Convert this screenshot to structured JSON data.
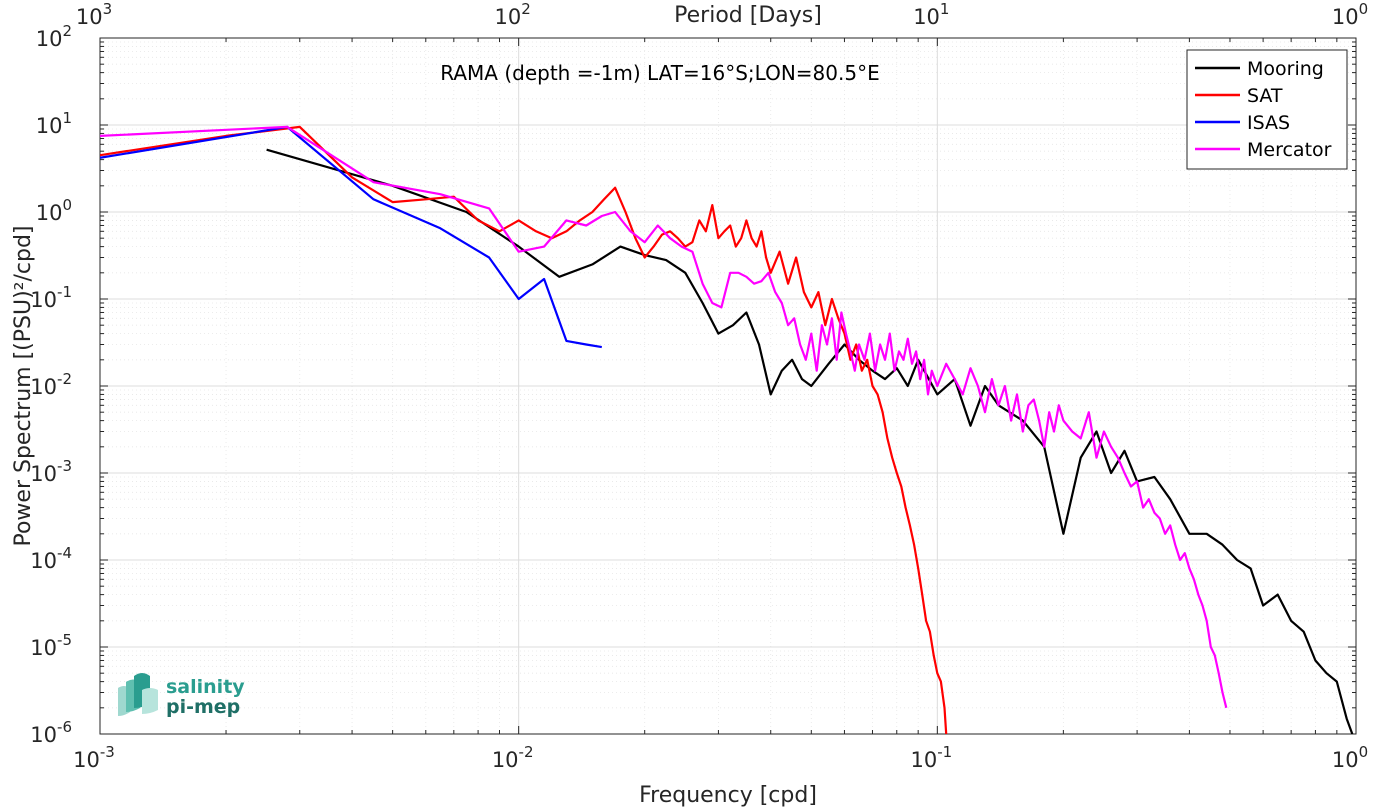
{
  "logo": {
    "line1": "salinity",
    "line2": "pi-mep",
    "color": "#2a9d8f"
  },
  "chart_data": {
    "type": "line",
    "title": "RAMA (depth =-1m) LAT=16°S;LON=80.5°E",
    "xlabel": "Frequency [cpd]",
    "ylabel": "Power Spectrum [(PSU)²/cpd]",
    "top_xlabel": "Period [Days]",
    "x_scale": "log",
    "y_scale": "log",
    "xlim": [
      0.001,
      1
    ],
    "ylim": [
      1e-06,
      100
    ],
    "grid": true,
    "minor_grid": true,
    "legend_position": "top-right",
    "x_ticks": [
      {
        "v": 0.001,
        "base": "10",
        "exp": "-3"
      },
      {
        "v": 0.01,
        "base": "10",
        "exp": "-2"
      },
      {
        "v": 0.1,
        "base": "10",
        "exp": "-1"
      },
      {
        "v": 1,
        "base": "10",
        "exp": "0"
      }
    ],
    "top_ticks": [
      {
        "v": 0.001,
        "base": "10",
        "exp": "3"
      },
      {
        "v": 0.01,
        "base": "10",
        "exp": "2"
      },
      {
        "v": 0.1,
        "base": "10",
        "exp": "1"
      },
      {
        "v": 1,
        "base": "10",
        "exp": "0"
      }
    ],
    "y_ticks": [
      {
        "v": 100,
        "base": "10",
        "exp": "2"
      },
      {
        "v": 10,
        "base": "10",
        "exp": "1"
      },
      {
        "v": 1,
        "base": "10",
        "exp": "0"
      },
      {
        "v": 0.1,
        "base": "10",
        "exp": "-1"
      },
      {
        "v": 0.01,
        "base": "10",
        "exp": "-2"
      },
      {
        "v": 0.001,
        "base": "10",
        "exp": "-3"
      },
      {
        "v": 0.0001,
        "base": "10",
        "exp": "-4"
      },
      {
        "v": 1e-05,
        "base": "10",
        "exp": "-5"
      },
      {
        "v": 1e-06,
        "base": "10",
        "exp": "-6"
      }
    ],
    "series": [
      {
        "name": "Mooring",
        "color": "#000000",
        "x": [
          0.0025,
          0.005,
          0.0075,
          0.01,
          0.0125,
          0.015,
          0.0175,
          0.02,
          0.0225,
          0.025,
          0.0275,
          0.03,
          0.0325,
          0.035,
          0.0375,
          0.04,
          0.0425,
          0.045,
          0.0475,
          0.05,
          0.055,
          0.06,
          0.065,
          0.07,
          0.075,
          0.08,
          0.085,
          0.09,
          0.1,
          0.11,
          0.12,
          0.13,
          0.14,
          0.16,
          0.18,
          0.2,
          0.22,
          0.24,
          0.26,
          0.28,
          0.3,
          0.33,
          0.36,
          0.4,
          0.44,
          0.48,
          0.52,
          0.56,
          0.6,
          0.65,
          0.7,
          0.75,
          0.8,
          0.85,
          0.9,
          0.95,
          0.98
        ],
        "y": [
          5.2,
          2.0,
          1.0,
          0.4,
          0.18,
          0.25,
          0.4,
          0.32,
          0.28,
          0.2,
          0.09,
          0.04,
          0.05,
          0.07,
          0.03,
          0.008,
          0.015,
          0.02,
          0.012,
          0.01,
          0.018,
          0.03,
          0.02,
          0.015,
          0.012,
          0.016,
          0.01,
          0.02,
          0.008,
          0.012,
          0.0035,
          0.01,
          0.006,
          0.004,
          0.002,
          0.0002,
          0.0015,
          0.003,
          0.001,
          0.0018,
          0.0008,
          0.0009,
          0.0005,
          0.0002,
          0.0002,
          0.00015,
          0.0001,
          8e-05,
          3e-05,
          4e-05,
          2e-05,
          1.5e-05,
          7e-06,
          5e-06,
          4e-06,
          1.5e-06,
          1e-06
        ]
      },
      {
        "name": "SAT",
        "color": "#ff0000",
        "x": [
          0.001,
          0.002,
          0.003,
          0.004,
          0.005,
          0.006,
          0.007,
          0.008,
          0.009,
          0.01,
          0.011,
          0.012,
          0.013,
          0.014,
          0.015,
          0.016,
          0.017,
          0.018,
          0.019,
          0.02,
          0.021,
          0.022,
          0.023,
          0.024,
          0.025,
          0.026,
          0.027,
          0.028,
          0.029,
          0.03,
          0.031,
          0.032,
          0.033,
          0.034,
          0.035,
          0.036,
          0.037,
          0.038,
          0.039,
          0.04,
          0.042,
          0.044,
          0.046,
          0.048,
          0.05,
          0.052,
          0.054,
          0.056,
          0.058,
          0.06,
          0.062,
          0.064,
          0.066,
          0.068,
          0.07,
          0.072,
          0.074,
          0.076,
          0.078,
          0.08,
          0.082,
          0.084,
          0.086,
          0.088,
          0.09,
          0.092,
          0.094,
          0.096,
          0.098,
          0.1,
          0.102,
          0.104,
          0.105
        ],
        "y": [
          4.5,
          7.5,
          9.5,
          2.5,
          1.3,
          1.4,
          1.5,
          0.8,
          0.6,
          0.8,
          0.6,
          0.5,
          0.6,
          0.8,
          1.0,
          1.4,
          1.9,
          1.0,
          0.5,
          0.3,
          0.4,
          0.55,
          0.6,
          0.5,
          0.4,
          0.45,
          0.8,
          0.6,
          1.2,
          0.5,
          0.6,
          0.7,
          0.4,
          0.5,
          0.8,
          0.5,
          0.4,
          0.6,
          0.3,
          0.2,
          0.35,
          0.15,
          0.3,
          0.12,
          0.08,
          0.12,
          0.05,
          0.1,
          0.06,
          0.04,
          0.02,
          0.03,
          0.015,
          0.02,
          0.01,
          0.008,
          0.005,
          0.0025,
          0.0015,
          0.001,
          0.0007,
          0.0004,
          0.00025,
          0.00015,
          8e-05,
          4e-05,
          2e-05,
          1.5e-05,
          8e-06,
          5e-06,
          4e-06,
          2e-06,
          1e-06
        ]
      },
      {
        "name": "ISAS",
        "color": "#0000ff",
        "x": [
          0.001,
          0.0028,
          0.0045,
          0.0065,
          0.0085,
          0.01,
          0.0115,
          0.013,
          0.0145,
          0.0158
        ],
        "y": [
          4.2,
          9.5,
          1.4,
          0.65,
          0.3,
          0.1,
          0.17,
          0.033,
          0.03,
          0.028
        ]
      },
      {
        "name": "Mercator",
        "color": "#ff00ff",
        "x": [
          0.001,
          0.0028,
          0.0045,
          0.0065,
          0.0085,
          0.01,
          0.0115,
          0.013,
          0.0145,
          0.0158,
          0.017,
          0.0185,
          0.02,
          0.0215,
          0.023,
          0.0245,
          0.026,
          0.0275,
          0.029,
          0.0305,
          0.032,
          0.0335,
          0.035,
          0.0365,
          0.038,
          0.0395,
          0.041,
          0.0425,
          0.044,
          0.0455,
          0.047,
          0.0485,
          0.05,
          0.0515,
          0.053,
          0.0545,
          0.056,
          0.0575,
          0.059,
          0.0605,
          0.062,
          0.0635,
          0.065,
          0.067,
          0.069,
          0.071,
          0.073,
          0.075,
          0.077,
          0.079,
          0.081,
          0.083,
          0.085,
          0.087,
          0.089,
          0.091,
          0.093,
          0.095,
          0.097,
          0.1,
          0.105,
          0.11,
          0.115,
          0.12,
          0.125,
          0.13,
          0.135,
          0.14,
          0.145,
          0.15,
          0.155,
          0.16,
          0.165,
          0.17,
          0.175,
          0.18,
          0.185,
          0.19,
          0.195,
          0.2,
          0.21,
          0.22,
          0.23,
          0.24,
          0.25,
          0.26,
          0.27,
          0.28,
          0.29,
          0.3,
          0.31,
          0.32,
          0.33,
          0.34,
          0.35,
          0.36,
          0.37,
          0.38,
          0.39,
          0.4,
          0.41,
          0.42,
          0.43,
          0.44,
          0.45,
          0.46,
          0.47,
          0.48,
          0.49
        ],
        "y": [
          7.5,
          9.5,
          2.2,
          1.6,
          1.1,
          0.35,
          0.4,
          0.8,
          0.7,
          0.9,
          1.0,
          0.6,
          0.45,
          0.7,
          0.5,
          0.4,
          0.35,
          0.15,
          0.09,
          0.08,
          0.2,
          0.2,
          0.18,
          0.15,
          0.16,
          0.2,
          0.12,
          0.09,
          0.05,
          0.06,
          0.03,
          0.02,
          0.04,
          0.015,
          0.05,
          0.03,
          0.06,
          0.02,
          0.07,
          0.04,
          0.025,
          0.015,
          0.03,
          0.02,
          0.04,
          0.015,
          0.03,
          0.02,
          0.04,
          0.015,
          0.025,
          0.02,
          0.035,
          0.018,
          0.025,
          0.012,
          0.02,
          0.008,
          0.015,
          0.01,
          0.018,
          0.012,
          0.008,
          0.016,
          0.01,
          0.005,
          0.012,
          0.006,
          0.01,
          0.004,
          0.008,
          0.003,
          0.006,
          0.007,
          0.004,
          0.002,
          0.005,
          0.003,
          0.006,
          0.004,
          0.003,
          0.0025,
          0.005,
          0.0015,
          0.003,
          0.002,
          0.0015,
          0.001,
          0.0007,
          0.0008,
          0.0004,
          0.0005,
          0.00035,
          0.0003,
          0.0002,
          0.00025,
          0.00015,
          0.0001,
          0.00012,
          8e-05,
          6e-05,
          4e-05,
          3e-05,
          2e-05,
          1e-05,
          8e-06,
          5e-06,
          3e-06,
          2e-06
        ]
      }
    ]
  }
}
